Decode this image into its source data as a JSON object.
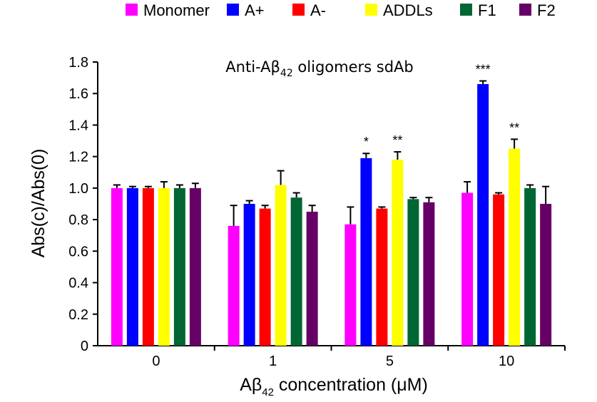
{
  "chart_data": {
    "type": "bar",
    "title": "Anti-Aβ42 oligomers sdAb",
    "title_parts": {
      "main": "Anti-Aβ",
      "sub": "42",
      "rest": " oligomers sdAb"
    },
    "xlabel": "Aβ42 concentration (μM)",
    "xlabel_parts": {
      "main": "Aβ",
      "sub": "42",
      "rest": " concentration (μM)"
    },
    "ylabel": "Abs(c)/Abs(0)",
    "ylim": [
      0,
      1.8
    ],
    "yticks": [
      "0",
      "0.2",
      "0.4",
      "0.6",
      "0.8",
      "1.0",
      "1.2",
      "1.4",
      "1.6",
      "1.8"
    ],
    "categories": [
      "0",
      "1",
      "5",
      "10"
    ],
    "legend_position": "top",
    "grid": false,
    "series": [
      {
        "name": "Monomer",
        "color": "#ff00ff",
        "values": [
          1.0,
          0.76,
          0.77,
          0.97
        ],
        "errors": [
          0.02,
          0.13,
          0.11,
          0.07
        ],
        "sig": [
          "",
          "",
          "",
          ""
        ]
      },
      {
        "name": "A+",
        "color": "#0000ff",
        "values": [
          1.0,
          0.9,
          1.19,
          1.66
        ],
        "errors": [
          0.01,
          0.02,
          0.03,
          0.02
        ],
        "sig": [
          "",
          "",
          "*",
          "***"
        ]
      },
      {
        "name": "A-",
        "color": "#ff0000",
        "values": [
          1.0,
          0.87,
          0.87,
          0.96
        ],
        "errors": [
          0.01,
          0.02,
          0.01,
          0.01
        ],
        "sig": [
          "",
          "",
          "",
          ""
        ]
      },
      {
        "name": "ADDLs",
        "color": "#ffff00",
        "values": [
          1.0,
          1.02,
          1.18,
          1.25
        ],
        "errors": [
          0.04,
          0.09,
          0.05,
          0.06
        ],
        "sig": [
          "",
          "",
          "**",
          "**"
        ]
      },
      {
        "name": "F1",
        "color": "#006633",
        "values": [
          1.0,
          0.94,
          0.93,
          1.0
        ],
        "errors": [
          0.02,
          0.03,
          0.01,
          0.02
        ],
        "sig": [
          "",
          "",
          "",
          ""
        ]
      },
      {
        "name": "F2",
        "color": "#660066",
        "values": [
          1.0,
          0.85,
          0.91,
          0.9
        ],
        "errors": [
          0.03,
          0.04,
          0.03,
          0.11
        ],
        "sig": [
          "",
          "",
          "",
          ""
        ]
      }
    ]
  }
}
